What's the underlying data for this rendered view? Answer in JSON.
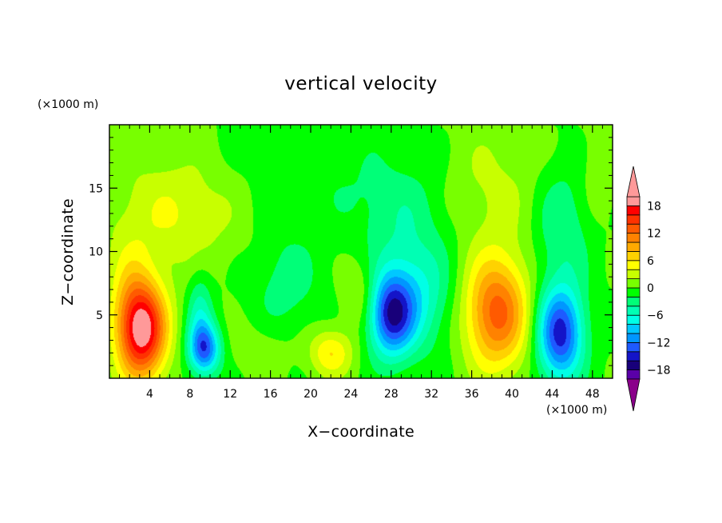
{
  "chart_data": {
    "type": "heatmap",
    "title": "vertical velocity",
    "xlabel": "X−coordinate",
    "ylabel": "Z−coordinate",
    "x_unit": "(×1000 m)",
    "y_unit": "(×1000 m)",
    "xlim": [
      0,
      50
    ],
    "ylim": [
      0,
      20
    ],
    "x_ticks": [
      4,
      8,
      12,
      16,
      20,
      24,
      28,
      32,
      36,
      40,
      44,
      48
    ],
    "x_tick_labels": [
      "4",
      "8",
      "12",
      "16",
      "20",
      "24",
      "28",
      "32",
      "36",
      "40",
      "44",
      "48"
    ],
    "y_ticks": [
      5,
      10,
      15
    ],
    "y_tick_labels": [
      "5",
      "10",
      "15"
    ],
    "colorbar": {
      "levels": [
        -20,
        -18,
        -16,
        -14,
        -12,
        -10,
        -8,
        -6,
        -4,
        -2,
        0,
        2,
        4,
        6,
        8,
        10,
        12,
        14,
        16,
        18,
        20
      ],
      "tick_values": [
        18,
        12,
        6,
        0,
        -6,
        -12,
        -18
      ],
      "tick_labels": [
        "18",
        "12",
        "6",
        "0",
        "−6",
        "−12",
        "−18"
      ],
      "colors": [
        "#8a008a",
        "#5a00a8",
        "#18007a",
        "#1414c8",
        "#1e5aff",
        "#0096ff",
        "#00c8ff",
        "#00ffe6",
        "#00ffb4",
        "#00ff78",
        "#00ff00",
        "#78ff00",
        "#c8ff00",
        "#ffff00",
        "#ffd200",
        "#ffaa00",
        "#ff8200",
        "#ff5a00",
        "#ff3200",
        "#ff0000",
        "#ff9999"
      ],
      "extends": "both"
    },
    "cells": [
      {
        "x": 3.5,
        "z": 3.8,
        "sx": 1.6,
        "sz": 2.6,
        "w": 17
      },
      {
        "x": 2.0,
        "z": 5.0,
        "sx": 1.5,
        "sz": 3.5,
        "w": 6
      },
      {
        "x": 9.5,
        "z": 2.3,
        "sx": 1.1,
        "sz": 1.4,
        "w": -12
      },
      {
        "x": 9.0,
        "z": 5.0,
        "sx": 0.9,
        "sz": 2.5,
        "w": -5
      },
      {
        "x": 6.5,
        "z": 13.0,
        "sx": 4.5,
        "sz": 3.2,
        "w": 4
      },
      {
        "x": 22.0,
        "z": 2.0,
        "sx": 1.5,
        "sz": 1.3,
        "w": 6
      },
      {
        "x": 25.0,
        "z": 6.5,
        "sx": 1.3,
        "sz": 2.0,
        "w": 3.5
      },
      {
        "x": 28.0,
        "z": 5.0,
        "sx": 1.6,
        "sz": 2.3,
        "w": -14
      },
      {
        "x": 30.5,
        "z": 6.5,
        "sx": 2.5,
        "sz": 3.0,
        "w": -6
      },
      {
        "x": 29.0,
        "z": 13.0,
        "sx": 3.5,
        "sz": 3.0,
        "w": -3
      },
      {
        "x": 38.5,
        "z": 5.2,
        "sx": 2.2,
        "sz": 3.1,
        "w": 13
      },
      {
        "x": 38.0,
        "z": 15.0,
        "sx": 3.5,
        "sz": 3.5,
        "w": 2.5
      },
      {
        "x": 44.8,
        "z": 3.5,
        "sx": 1.6,
        "sz": 2.6,
        "w": -15
      },
      {
        "x": 45.0,
        "z": 12.0,
        "sx": 2.0,
        "sz": 3.5,
        "w": -4
      },
      {
        "x": 17.5,
        "z": 7.5,
        "sx": 2.5,
        "sz": 3.0,
        "w": -3
      },
      {
        "x": 15.0,
        "z": 2.5,
        "sx": 2.5,
        "sz": 1.5,
        "w": 1.5
      },
      {
        "x": 20.0,
        "z": 16.5,
        "sx": 6.0,
        "sz": 3.0,
        "w": -1.5
      },
      {
        "x": 48.5,
        "z": 16.0,
        "sx": 1.5,
        "sz": 3.0,
        "w": 1.5
      }
    ]
  }
}
